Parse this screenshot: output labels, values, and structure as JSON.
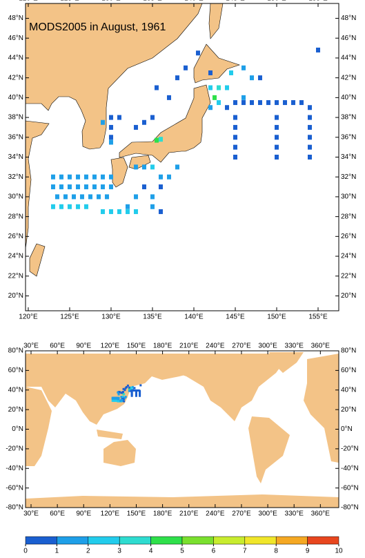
{
  "title": "MODS2005 in August, 1961",
  "top_map": {
    "xlim": [
      119.67,
      157.5
    ],
    "ylim": [
      18.5,
      49.5
    ],
    "xticks": [
      {
        "value": 120,
        "label": "120°E"
      },
      {
        "value": 125,
        "label": "125°E"
      },
      {
        "value": 130,
        "label": "130°E"
      },
      {
        "value": 135,
        "label": "135°E"
      },
      {
        "value": 140,
        "label": "140°E"
      },
      {
        "value": 145,
        "label": "145°E"
      },
      {
        "value": 150,
        "label": "150°E"
      },
      {
        "value": 155,
        "label": "155°E"
      }
    ],
    "yticks": [
      {
        "value": 20,
        "label": "20°N"
      },
      {
        "value": 22,
        "label": "22°N"
      },
      {
        "value": 24,
        "label": "24°N"
      },
      {
        "value": 26,
        "label": "26°N"
      },
      {
        "value": 28,
        "label": "28°N"
      },
      {
        "value": 30,
        "label": "30°N"
      },
      {
        "value": 32,
        "label": "32°N"
      },
      {
        "value": 34,
        "label": "34°N"
      },
      {
        "value": 36,
        "label": "36°N"
      },
      {
        "value": 38,
        "label": "38°N"
      },
      {
        "value": 40,
        "label": "40°N"
      },
      {
        "value": 42,
        "label": "42°N"
      },
      {
        "value": 44,
        "label": "44°N"
      },
      {
        "value": 46,
        "label": "46°N"
      },
      {
        "value": 48,
        "label": "48°N"
      }
    ]
  },
  "bottom_map": {
    "xlim": [
      23.7,
      381
    ],
    "ylim": [
      -80,
      80
    ],
    "xticks": [
      {
        "value": 30,
        "label": "30°E"
      },
      {
        "value": 60,
        "label": "60°E"
      },
      {
        "value": 90,
        "label": "90°E"
      },
      {
        "value": 120,
        "label": "120°E"
      },
      {
        "value": 150,
        "label": "150°E"
      },
      {
        "value": 180,
        "label": "180°E"
      },
      {
        "value": 210,
        "label": "210°E"
      },
      {
        "value": 240,
        "label": "240°E"
      },
      {
        "value": 270,
        "label": "270°E"
      },
      {
        "value": 300,
        "label": "300°E"
      },
      {
        "value": 330,
        "label": "330°E"
      },
      {
        "value": 360,
        "label": "360°E"
      }
    ],
    "yticks": [
      {
        "value": -80,
        "label": "-80°N"
      },
      {
        "value": -60,
        "label": "-60°N"
      },
      {
        "value": -40,
        "label": "-40°N"
      },
      {
        "value": -20,
        "label": "-20°N"
      },
      {
        "value": 0,
        "label": "0°N"
      },
      {
        "value": 20,
        "label": "20°N"
      },
      {
        "value": 40,
        "label": "40°N"
      },
      {
        "value": 60,
        "label": "60°N"
      },
      {
        "value": 80,
        "label": "80°N"
      }
    ]
  },
  "colorbar": {
    "ticks": [
      0,
      1,
      2,
      3,
      4,
      5,
      6,
      7,
      8,
      9,
      10
    ],
    "colors": [
      "#1a5fd0",
      "#1e9fe8",
      "#22ccec",
      "#2edcd0",
      "#2ee04a",
      "#7ae02e",
      "#c8ec2e",
      "#f0e62a",
      "#f5a823",
      "#e8461e"
    ]
  },
  "observations": [
    [
      123,
      32,
      1.5
    ],
    [
      124,
      32,
      1.5
    ],
    [
      125,
      32,
      1.5
    ],
    [
      126,
      32,
      1.5
    ],
    [
      127,
      32,
      1.5
    ],
    [
      128,
      32,
      1.5
    ],
    [
      129,
      32,
      1.5
    ],
    [
      130,
      32,
      1.5
    ],
    [
      123,
      31,
      1.5
    ],
    [
      124,
      31,
      1.5
    ],
    [
      125,
      31,
      1.5
    ],
    [
      126,
      31,
      1.5
    ],
    [
      127,
      31,
      1.5
    ],
    [
      128,
      31,
      1.5
    ],
    [
      129,
      31,
      1.5
    ],
    [
      130,
      31,
      1.5
    ],
    [
      123.5,
      30,
      1.5
    ],
    [
      124.5,
      30,
      1.5
    ],
    [
      125.5,
      30,
      1.5
    ],
    [
      126.5,
      30,
      1.5
    ],
    [
      127.5,
      30,
      1.5
    ],
    [
      128.5,
      30,
      1.5
    ],
    [
      129.5,
      30,
      1.5
    ],
    [
      123,
      29,
      2.5
    ],
    [
      124,
      29,
      2.5
    ],
    [
      125,
      29,
      2.5
    ],
    [
      126,
      29,
      2.5
    ],
    [
      127,
      29,
      2.5
    ],
    [
      129,
      28.5,
      2.5
    ],
    [
      130,
      28.5,
      2.5
    ],
    [
      131,
      28.5,
      2.5
    ],
    [
      132,
      28.5,
      2.5
    ],
    [
      133,
      28.5,
      2.5
    ],
    [
      130,
      38,
      0.5
    ],
    [
      131,
      38,
      0.5
    ],
    [
      130,
      37,
      0.5
    ],
    [
      130,
      36,
      0.5
    ],
    [
      130,
      35.5,
      1.5
    ],
    [
      129,
      37.5,
      1.5
    ],
    [
      133,
      33,
      1.5
    ],
    [
      134,
      33,
      1.5
    ],
    [
      135,
      33,
      2.5
    ],
    [
      136,
      32,
      1.5
    ],
    [
      134,
      31,
      0.5
    ],
    [
      135,
      30,
      1.5
    ],
    [
      136,
      31,
      0.5
    ],
    [
      137,
      32,
      1.5
    ],
    [
      138,
      33,
      1.5
    ],
    [
      135,
      29,
      1.5
    ],
    [
      136,
      28.5,
      0.5
    ],
    [
      133,
      30,
      1.5
    ],
    [
      132,
      29,
      1.5
    ],
    [
      135.5,
      35.7,
      4.5
    ],
    [
      136,
      35.8,
      3.5
    ],
    [
      133,
      37,
      0.5
    ],
    [
      134,
      37.5,
      0.5
    ],
    [
      135,
      38,
      0.5
    ],
    [
      137,
      40,
      0.5
    ],
    [
      138,
      42,
      0.5
    ],
    [
      139,
      43,
      0.5
    ],
    [
      140.5,
      44.5,
      0.5
    ],
    [
      135.5,
      41,
      0.5
    ],
    [
      142,
      41,
      2.5
    ],
    [
      143,
      41,
      3.5
    ],
    [
      144,
      41,
      2.5
    ],
    [
      142.5,
      40,
      4.5
    ],
    [
      143,
      39.5,
      2.5
    ],
    [
      142,
      39,
      1.5
    ],
    [
      144,
      39,
      0.5
    ],
    [
      145,
      39.5,
      0.5
    ],
    [
      146,
      40,
      1.5
    ],
    [
      147,
      42,
      1.5
    ],
    [
      148,
      42,
      0.5
    ],
    [
      146,
      43,
      1.5
    ],
    [
      144.5,
      42.5,
      2.5
    ],
    [
      142,
      42.5,
      0.5
    ],
    [
      145,
      34,
      0.5
    ],
    [
      145,
      35,
      0.5
    ],
    [
      145,
      36,
      0.5
    ],
    [
      145,
      37,
      0.5
    ],
    [
      145,
      38,
      0.5
    ],
    [
      150,
      34,
      0.5
    ],
    [
      150,
      35,
      0.5
    ],
    [
      150,
      36,
      0.5
    ],
    [
      150,
      37,
      0.5
    ],
    [
      150,
      38,
      0.5
    ],
    [
      154,
      34,
      0.5
    ],
    [
      154,
      35,
      0.5
    ],
    [
      154,
      36,
      0.5
    ],
    [
      154,
      37,
      0.5
    ],
    [
      154,
      38,
      0.5
    ],
    [
      154,
      39,
      0.5
    ],
    [
      146,
      39.5,
      0.5
    ],
    [
      147,
      39.5,
      0.5
    ],
    [
      148,
      39.5,
      0.5
    ],
    [
      149,
      39.5,
      0.5
    ],
    [
      150,
      39.5,
      0.5
    ],
    [
      151,
      39.5,
      0.5
    ],
    [
      152,
      39.5,
      0.5
    ],
    [
      153,
      39.5,
      0.5
    ],
    [
      155,
      44.8,
      0.5
    ]
  ]
}
